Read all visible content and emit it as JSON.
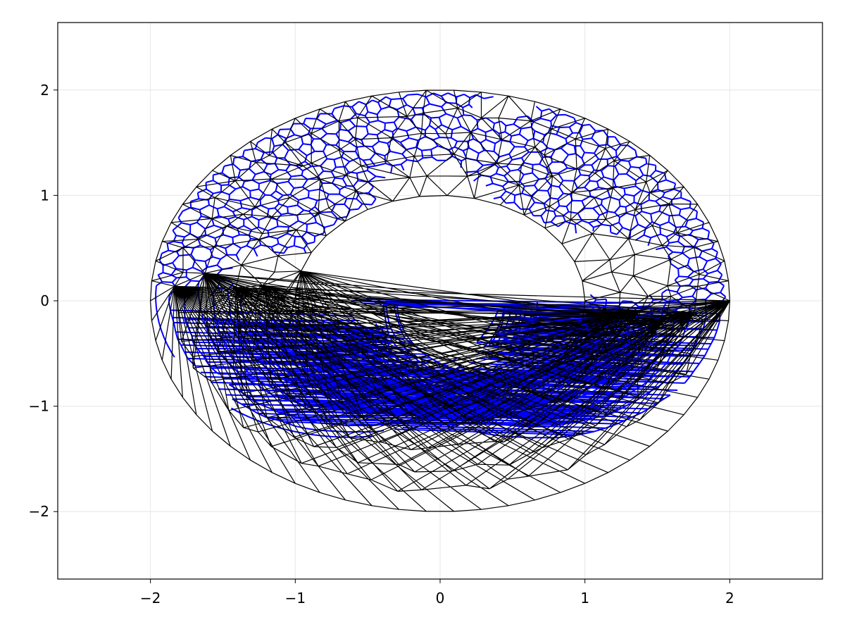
{
  "chart_data": {
    "type": "triangulation",
    "shape": "annulus",
    "inner_radius": 1,
    "outer_radius": 2,
    "center": [
      0,
      0
    ],
    "xlim": [
      -2.64,
      2.64
    ],
    "ylim": [
      -2.64,
      2.64
    ],
    "xticks": [
      -2,
      -1,
      0,
      1,
      2
    ],
    "yticks": [
      -2,
      -1,
      0,
      1,
      2
    ],
    "xtick_labels": [
      "−2",
      "−1",
      "0",
      "1",
      "2"
    ],
    "ytick_labels": [
      "−2",
      "−1",
      "0",
      "1",
      "2"
    ],
    "grid": true,
    "title": "",
    "xlabel": "",
    "ylabel": "",
    "layers": [
      {
        "kind": "triangle-edges",
        "color": "#000000"
      },
      {
        "kind": "dual-voronoi-edges",
        "color": "#0000ff"
      }
    ]
  },
  "colors": {
    "grid": "#e6e6e6",
    "frame": "#000000",
    "triangles": "#000000",
    "dual": "#0000ff"
  }
}
